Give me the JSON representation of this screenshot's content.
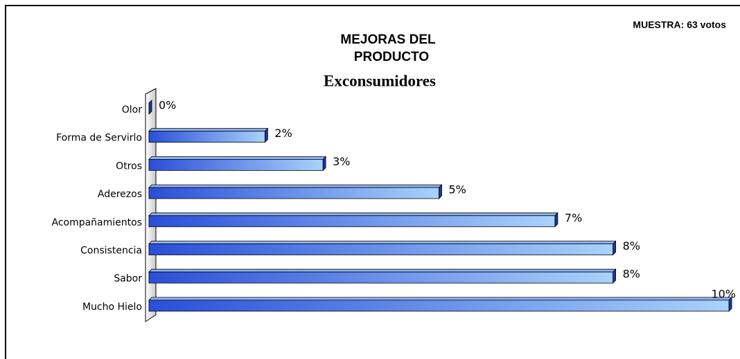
{
  "chart_data": {
    "type": "bar",
    "orientation": "horizontal",
    "title_lines": [
      "MEJORAS DEL",
      "PRODUCTO"
    ],
    "subtitle": "Exconsumidores",
    "annotation": "MUESTRA: 63 votos",
    "categories": [
      "Olor",
      "Forma de Servirlo",
      "Otros",
      "Aderezos",
      "Acompañamientos",
      "Consistencia",
      "Sabor",
      "Mucho Hielo"
    ],
    "values": [
      0,
      2,
      3,
      5,
      7,
      8,
      8,
      10
    ],
    "value_labels": [
      "0%",
      "2%",
      "3%",
      "5%",
      "7%",
      "8%",
      "8%",
      "10%"
    ],
    "color": "#3a5fe0",
    "xlim": [
      0,
      10
    ],
    "grid": false
  }
}
